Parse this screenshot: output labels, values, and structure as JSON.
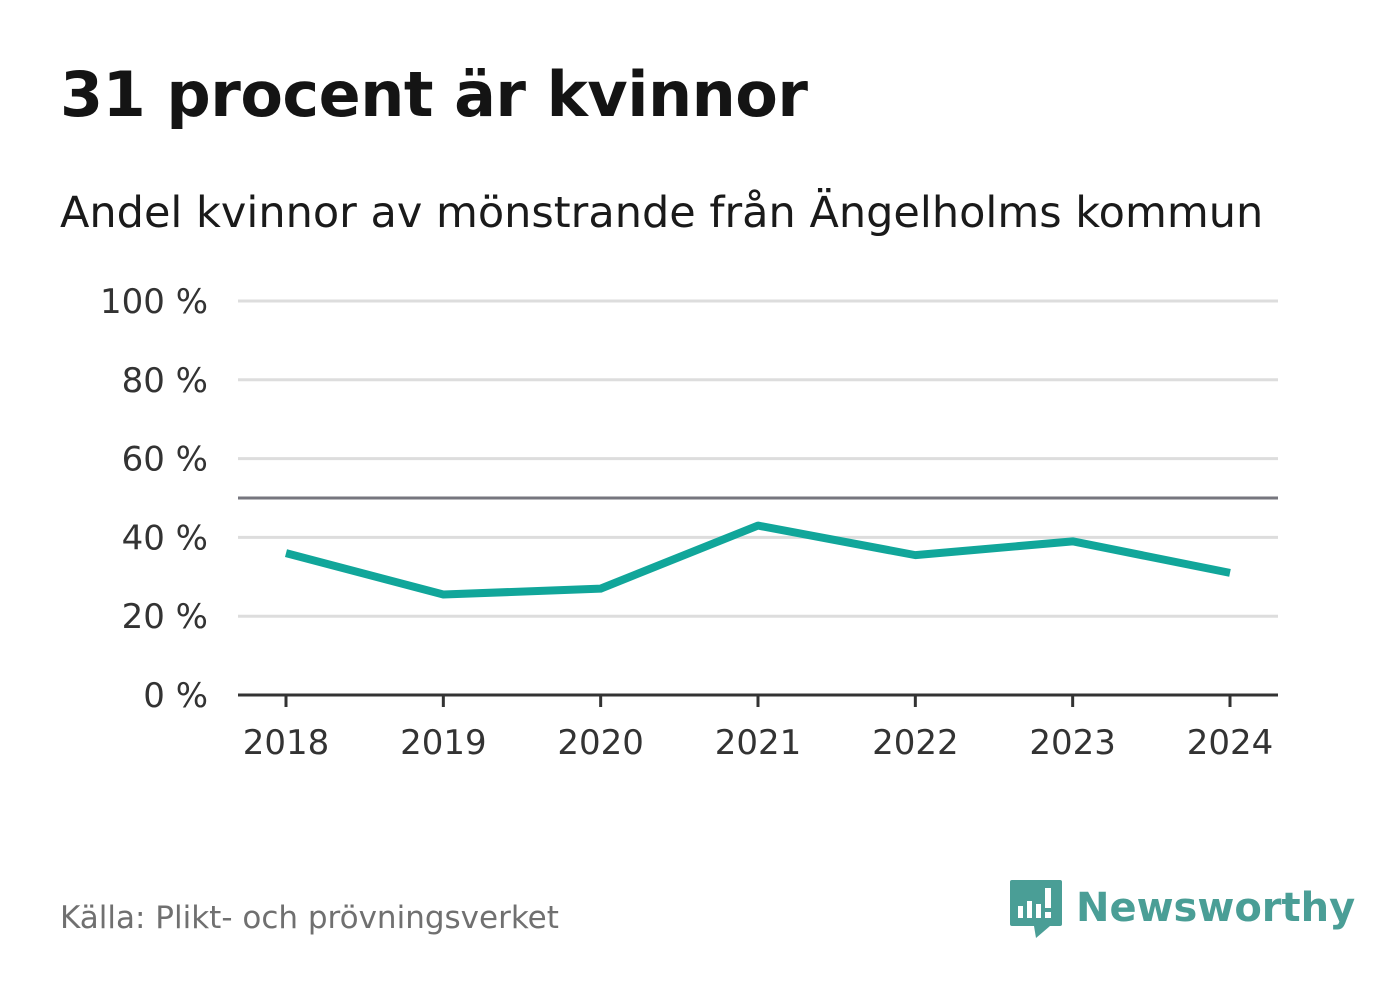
{
  "title": "31 procent är kvinnor",
  "subtitle": "Andel kvinnor av mönstrande från Ängelholms kommun",
  "source": "Källa: Plikt- och prövningsverket",
  "brand": {
    "name": "Newsworthy",
    "icon": "bar-chart-speech-bubble-icon",
    "color": "#4a9e96"
  },
  "chart_data": {
    "type": "line",
    "categories": [
      "2018",
      "2019",
      "2020",
      "2021",
      "2022",
      "2023",
      "2024"
    ],
    "series": [
      {
        "color": "#11a69a",
        "values": [
          36,
          25.5,
          27,
          43,
          35.5,
          39,
          31
        ]
      }
    ],
    "ylim": [
      0,
      100
    ],
    "yticks": [
      0,
      20,
      40,
      60,
      80,
      100
    ],
    "ytick_labels": [
      "0 %",
      "20 %",
      "40 %",
      "60 %",
      "80 %",
      "100 %"
    ],
    "reference_line": 50,
    "grid": true,
    "title": "31 procent är kvinnor",
    "subtitle": "Andel kvinnor av mönstrande från Ängelholms kommun",
    "xlabel": "",
    "ylabel": ""
  }
}
